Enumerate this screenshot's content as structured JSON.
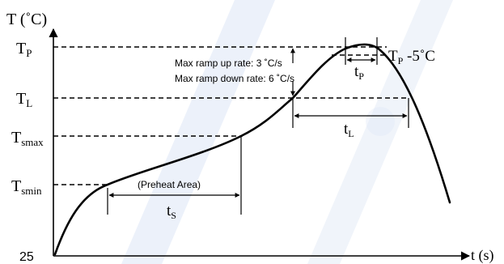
{
  "axes": {
    "y_label": "T (˚C)",
    "x_label": "t (s)",
    "origin_label": "25"
  },
  "levels": {
    "tp": {
      "main": "T",
      "sub": "P"
    },
    "tl": {
      "main": "T",
      "sub": "L"
    },
    "tsmax": {
      "main": "T",
      "sub": "smax"
    },
    "tsmin": {
      "main": "T",
      "sub": "smin"
    }
  },
  "annotations": {
    "tp_minus": {
      "main": "T",
      "sub": "P",
      "rest": " -5˚C"
    },
    "ramp_up": "Max ramp up rate: 3 ˚C/s",
    "ramp_down": "Max ramp down rate: 6 ˚C/s",
    "preheat": "(Preheat Area)"
  },
  "intervals": {
    "tp_interval": {
      "main": "t",
      "sub": "P"
    },
    "tl_interval": {
      "main": "t",
      "sub": "L"
    },
    "ts_interval": {
      "main": "t",
      "sub": "S"
    }
  },
  "colors": {
    "line": "#000000",
    "watermark": "#dde6f5"
  }
}
